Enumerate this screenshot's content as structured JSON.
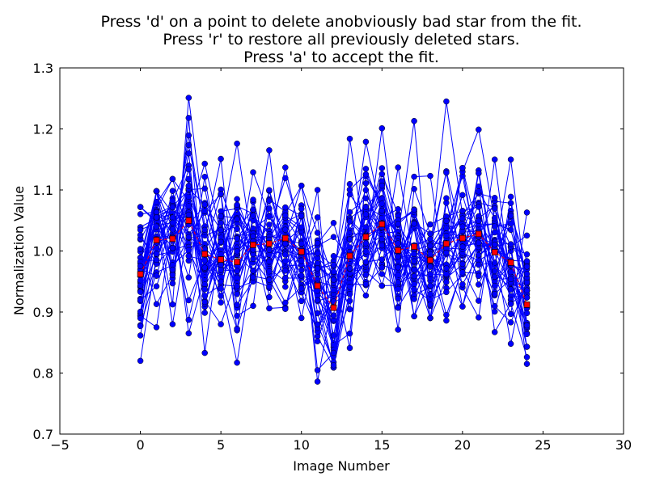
{
  "chart_data": {
    "type": "line",
    "title_lines": [
      "Press 'd' on a point to delete anobviously bad star from the fit.",
      "Press 'r' to restore all previously deleted stars.",
      "Press 'a' to accept the fit."
    ],
    "xlabel": "Image Number",
    "ylabel": "Normalization Value",
    "xlim": [
      -5,
      30
    ],
    "ylim": [
      0.7,
      1.3
    ],
    "xticks": [
      "−5",
      "0",
      "5",
      "10",
      "15",
      "20",
      "25",
      "30"
    ],
    "yticks": [
      "0.7",
      "0.8",
      "0.9",
      "1.0",
      "1.1",
      "1.2",
      "1.3"
    ],
    "grid": false,
    "legend": "none",
    "colors": {
      "stars": "#0000ff",
      "fit": "#ff0000",
      "marker_edge": "#000000"
    },
    "x": [
      0,
      1,
      2,
      3,
      4,
      5,
      6,
      7,
      8,
      9,
      10,
      11,
      12,
      13,
      14,
      15,
      16,
      17,
      18,
      19,
      20,
      21,
      22,
      23,
      24
    ],
    "fit_series": {
      "marker": "square",
      "values": [
        0.962,
        1.018,
        1.02,
        1.05,
        0.995,
        0.986,
        0.982,
        1.01,
        1.012,
        1.021,
        0.999,
        0.943,
        0.907,
        0.992,
        1.023,
        1.044,
        1.001,
        1.007,
        0.985,
        1.012,
        1.021,
        1.028,
        0.998,
        0.981,
        0.912
      ]
    },
    "star_series": {
      "marker": "circle",
      "count": 40,
      "max_values": [
        1.072,
        1.098,
        1.118,
        1.251,
        1.143,
        1.151,
        1.176,
        1.129,
        1.165,
        1.137,
        1.107,
        1.1,
        1.046,
        1.184,
        1.179,
        1.201,
        1.137,
        1.213,
        1.123,
        1.245,
        1.136,
        1.199,
        1.15,
        1.15,
        1.063
      ],
      "min_values": [
        0.82,
        0.875,
        0.88,
        0.865,
        0.833,
        0.88,
        0.817,
        0.91,
        0.906,
        0.905,
        0.89,
        0.786,
        0.809,
        0.841,
        0.927,
        0.943,
        0.871,
        0.893,
        0.89,
        0.886,
        0.909,
        0.891,
        0.867,
        0.848,
        0.815
      ],
      "spread": [
        0.055,
        0.045,
        0.05,
        0.065,
        0.055,
        0.05,
        0.055,
        0.045,
        0.045,
        0.045,
        0.045,
        0.055,
        0.055,
        0.055,
        0.05,
        0.05,
        0.045,
        0.05,
        0.045,
        0.055,
        0.05,
        0.05,
        0.05,
        0.055,
        0.045
      ]
    }
  }
}
